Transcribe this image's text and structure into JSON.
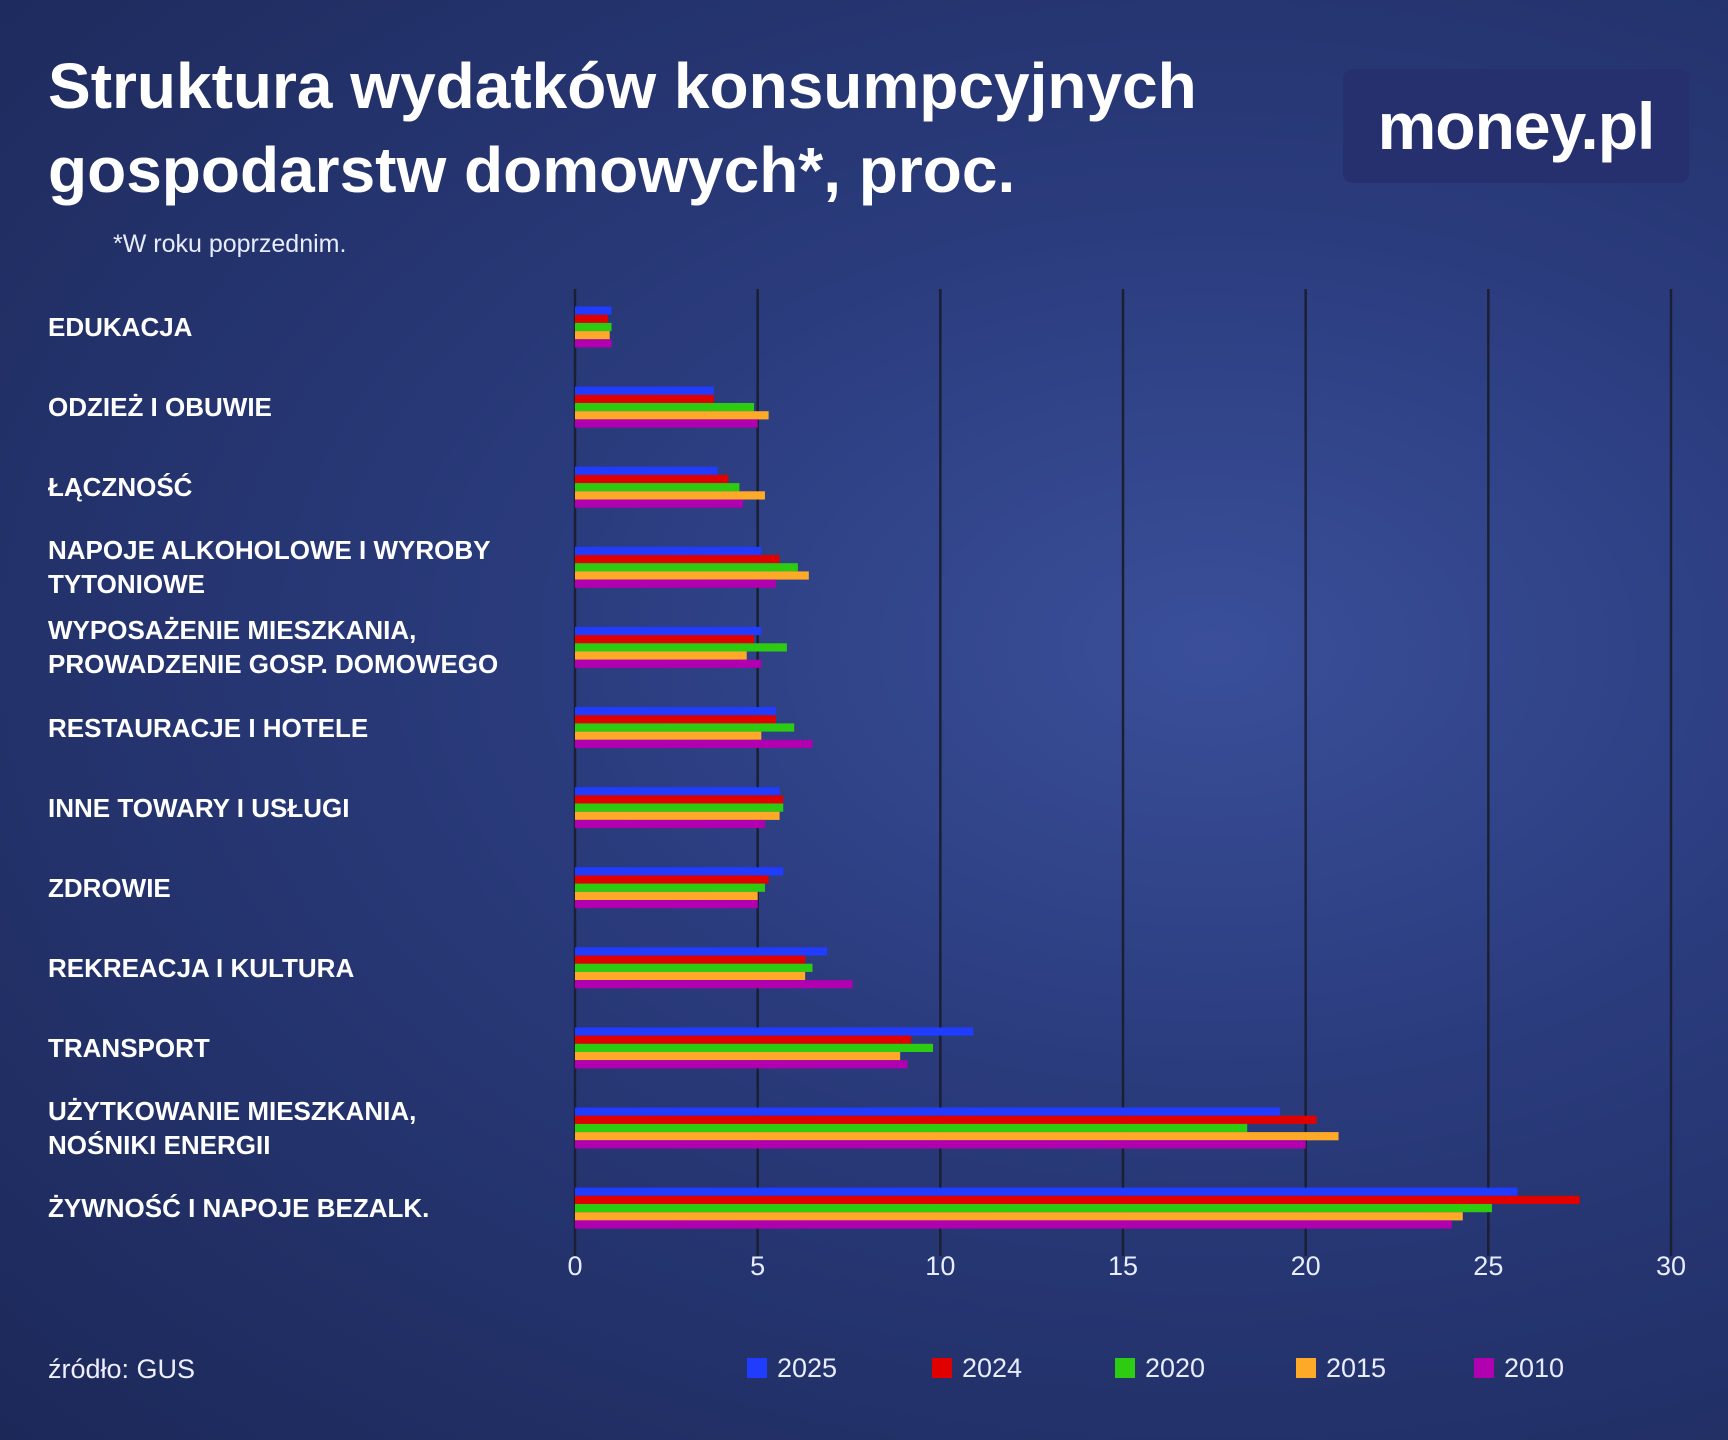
{
  "chart_data": {
    "type": "bar",
    "orientation": "horizontal",
    "title": "Struktura wydatków konsumpcyjnych gospodarstw domowych*, proc.",
    "note": "*W roku poprzednim.",
    "logo": "money.pl",
    "source": "źródło: GUS",
    "categories": [
      "EDUKACJA",
      "ODZIEŻ I OBUWIE",
      "ŁĄCZNOŚĆ",
      "NAPOJE ALKOHOLOWE I WYROBY TYTONIOWE",
      "WYPOSAŻENIE MIESZKANIA, PROWADZENIE GOSP. DOMOWEGO",
      "RESTAURACJE I HOTELE",
      "INNE TOWARY I USŁUGI",
      "ZDROWIE",
      "REKREACJA I KULTURA",
      "TRANSPORT",
      "UŻYTKOWANIE MIESZKANIA, NOŚNIKI ENERGII",
      "ŻYWNOŚĆ I NAPOJE BEZALK."
    ],
    "series": [
      {
        "name": "2025",
        "color": "#1f3cff",
        "values": [
          1.0,
          3.8,
          3.9,
          5.1,
          5.1,
          5.5,
          5.6,
          5.7,
          6.9,
          10.9,
          19.3,
          25.8
        ]
      },
      {
        "name": "2024",
        "color": "#e00000",
        "values": [
          0.9,
          3.8,
          4.2,
          5.6,
          4.9,
          5.5,
          5.7,
          5.3,
          6.3,
          9.2,
          20.3,
          27.5
        ]
      },
      {
        "name": "2020",
        "color": "#2ecc10",
        "values": [
          1.0,
          4.9,
          4.5,
          6.1,
          5.8,
          6.0,
          5.7,
          5.2,
          6.5,
          9.8,
          18.4,
          25.1
        ]
      },
      {
        "name": "2015",
        "color": "#ffa929",
        "values": [
          0.95,
          5.3,
          5.2,
          6.4,
          4.7,
          5.1,
          5.6,
          5.0,
          6.3,
          8.9,
          20.9,
          24.3
        ]
      },
      {
        "name": "2010",
        "color": "#b000b0",
        "values": [
          1.0,
          5.0,
          4.6,
          5.5,
          5.1,
          6.5,
          5.2,
          5.0,
          7.6,
          9.1,
          20.0,
          24.0
        ]
      }
    ],
    "xlim": [
      0,
      30
    ],
    "xticks": [
      0,
      5,
      10,
      15,
      20,
      25,
      30
    ],
    "grid": true
  }
}
